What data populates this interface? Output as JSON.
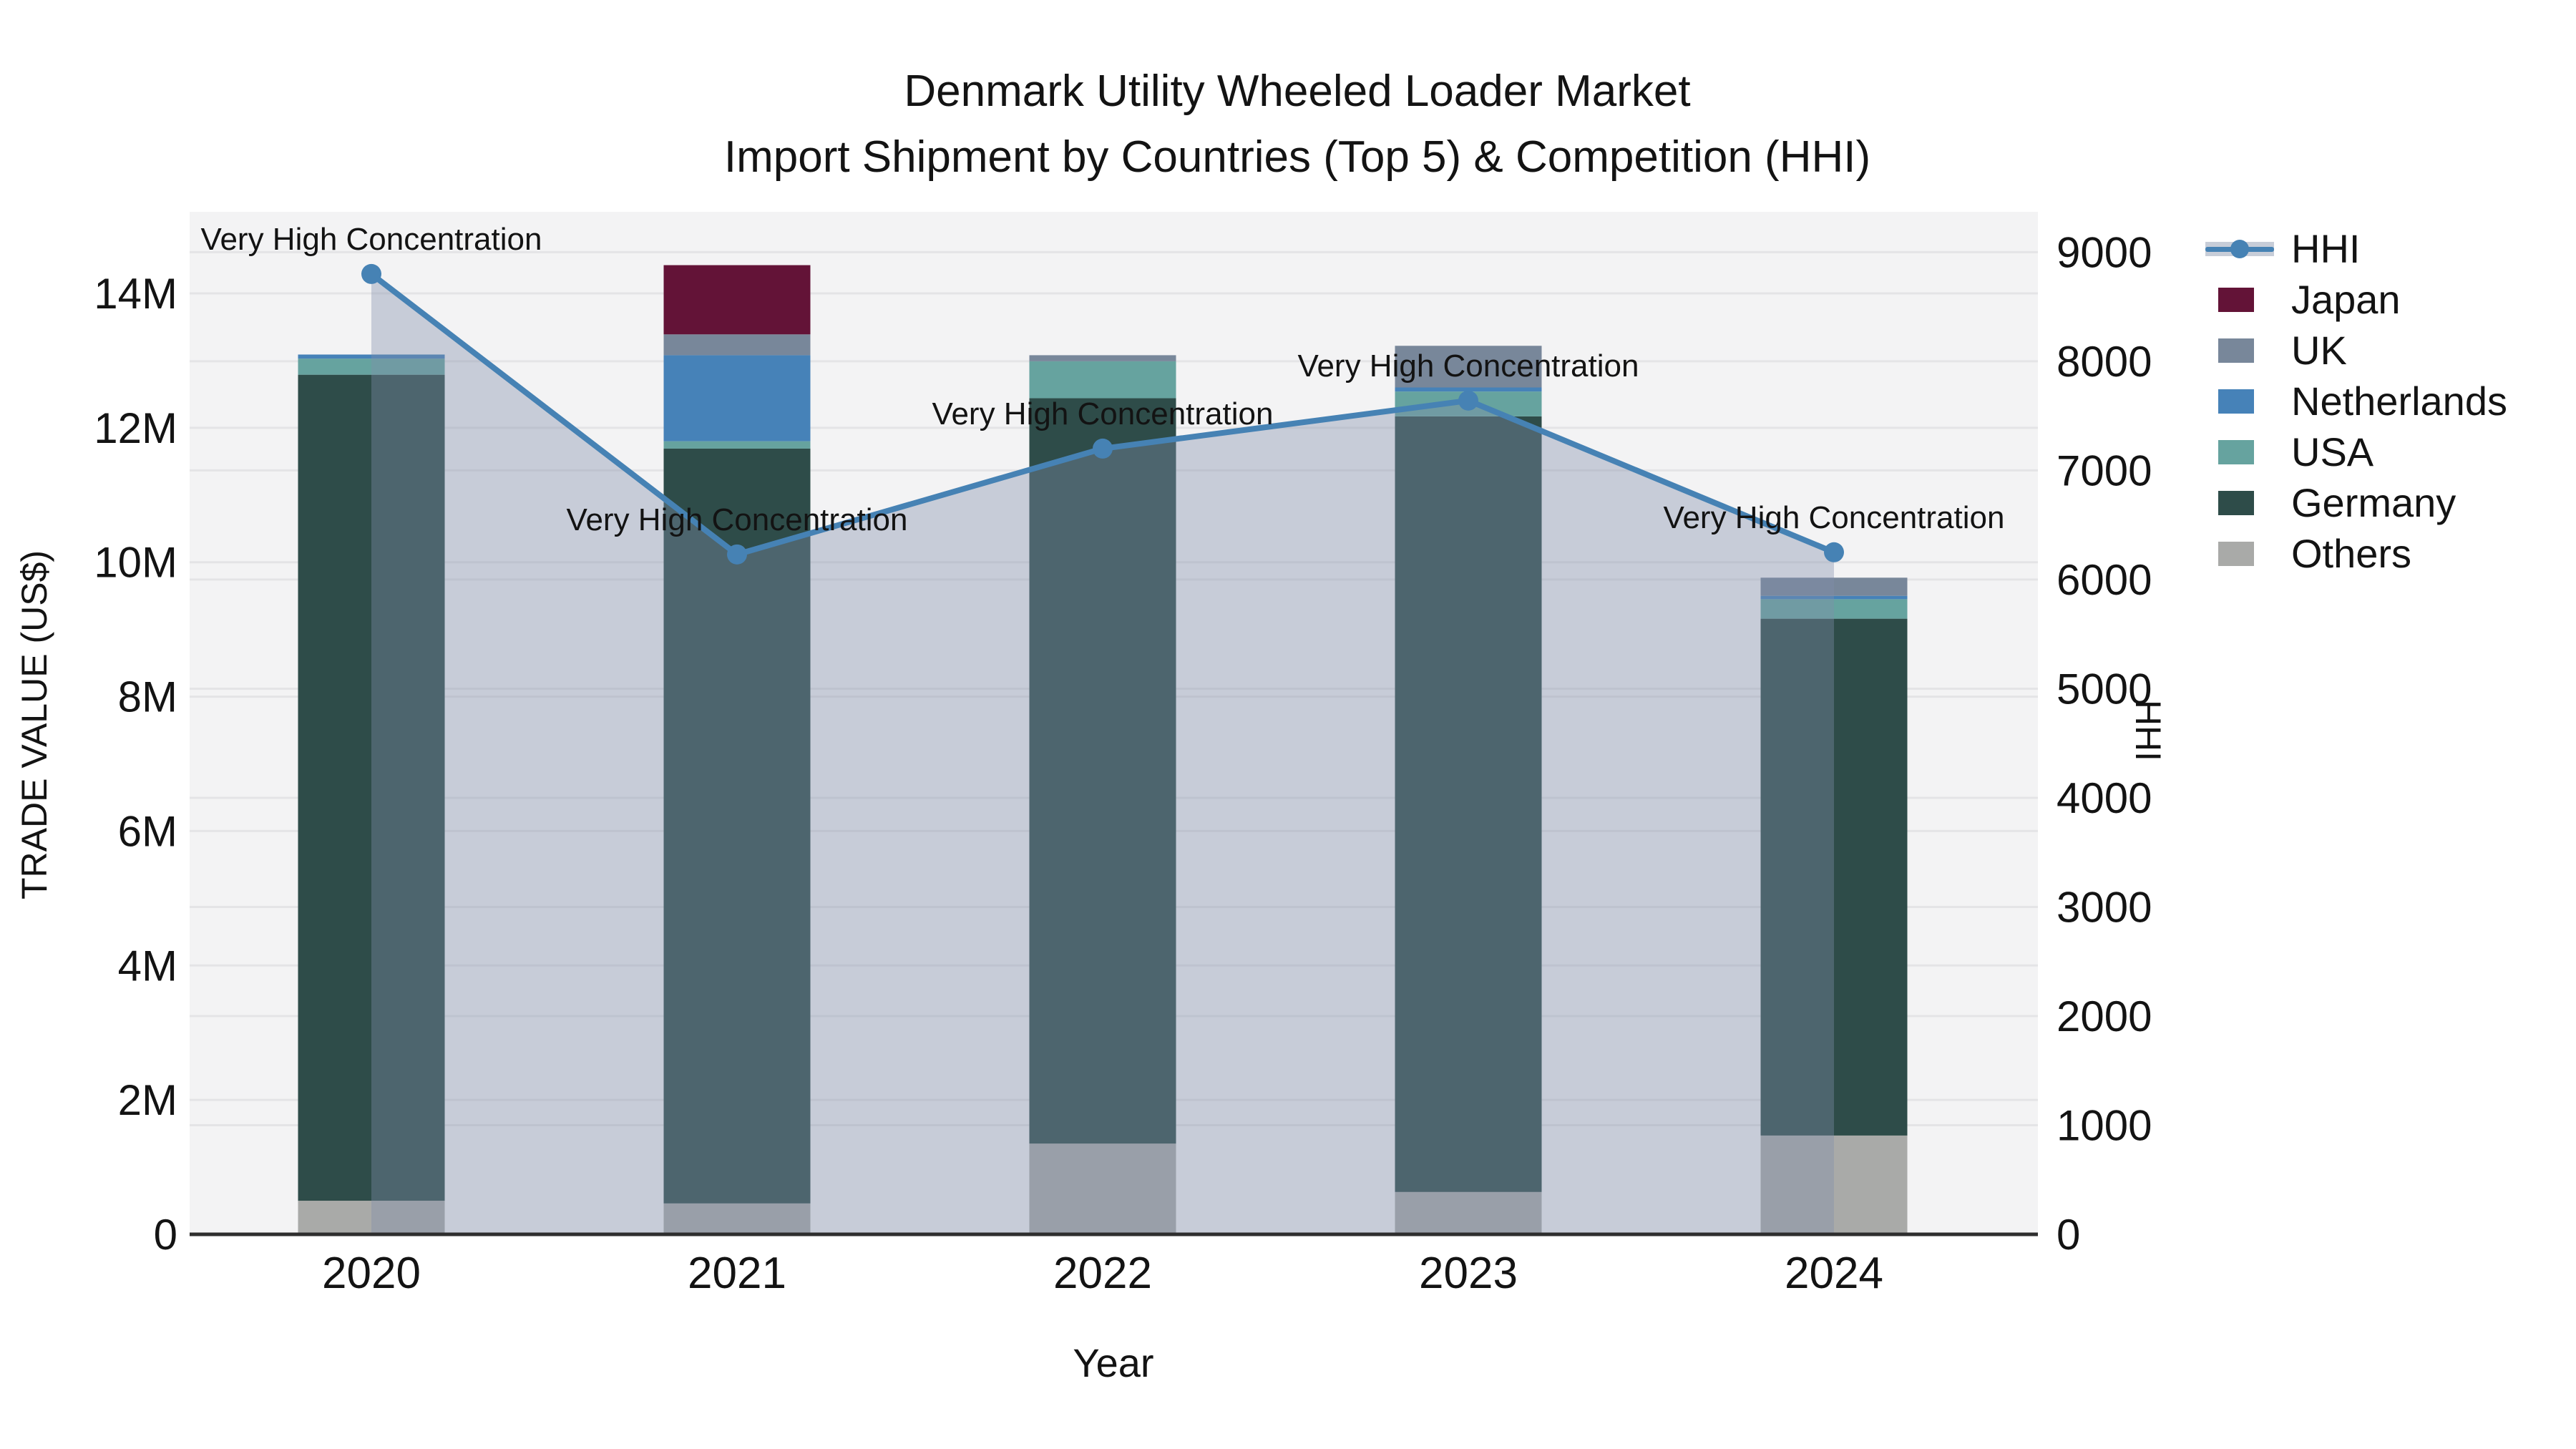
{
  "title": {
    "line1": "Denmark Utility Wheeled Loader Market",
    "line2": "Import Shipment by Countries (Top 5) & Competition (HHI)"
  },
  "axes": {
    "x_label": "Year",
    "y_left_label": "TRADE VALUE (US$)",
    "y_right_label": "HHI",
    "y_left_ticks": [
      {
        "label": "0",
        "value": 0
      },
      {
        "label": "2M",
        "value": 2
      },
      {
        "label": "4M",
        "value": 4
      },
      {
        "label": "6M",
        "value": 6
      },
      {
        "label": "8M",
        "value": 8
      },
      {
        "label": "10M",
        "value": 10
      },
      {
        "label": "12M",
        "value": 12
      },
      {
        "label": "14M",
        "value": 14
      }
    ],
    "y_right_ticks": [
      {
        "label": "0",
        "value": 0
      },
      {
        "label": "1000",
        "value": 1000
      },
      {
        "label": "2000",
        "value": 2000
      },
      {
        "label": "3000",
        "value": 3000
      },
      {
        "label": "4000",
        "value": 4000
      },
      {
        "label": "5000",
        "value": 5000
      },
      {
        "label": "6000",
        "value": 6000
      },
      {
        "label": "7000",
        "value": 7000
      },
      {
        "label": "8000",
        "value": 8000
      },
      {
        "label": "9000",
        "value": 9000
      }
    ]
  },
  "legend": {
    "items": [
      {
        "label": "HHI",
        "type": "line",
        "color": "#4682B4"
      },
      {
        "label": "Japan",
        "type": "swatch",
        "color": "#631337"
      },
      {
        "label": "UK",
        "type": "swatch",
        "color": "#78879A"
      },
      {
        "label": "Netherlands",
        "type": "swatch",
        "color": "#4682B8"
      },
      {
        "label": "USA",
        "type": "swatch",
        "color": "#66A39F"
      },
      {
        "label": "Germany",
        "type": "swatch",
        "color": "#2E4C49"
      },
      {
        "label": "Others",
        "type": "swatch",
        "color": "#A9AAA8"
      }
    ]
  },
  "chart_data": {
    "type": "bar+line",
    "title": "Denmark Utility Wheeled Loader Market — Import Shipment by Countries (Top 5) & Competition (HHI)",
    "categories": [
      "2020",
      "2021",
      "2022",
      "2023",
      "2024"
    ],
    "bar_unit": "million US$",
    "stack_order_bottom_to_top": [
      "Others",
      "Germany",
      "USA",
      "Netherlands",
      "UK",
      "Japan"
    ],
    "series": [
      {
        "name": "Others",
        "color": "#A9AAA8",
        "values": [
          0.5,
          0.46,
          1.35,
          0.63,
          1.47
        ]
      },
      {
        "name": "Germany",
        "color": "#2E4C49",
        "values": [
          12.29,
          11.23,
          11.09,
          11.54,
          7.69
        ]
      },
      {
        "name": "USA",
        "color": "#66A39F",
        "values": [
          0.24,
          0.11,
          0.55,
          0.37,
          0.29
        ]
      },
      {
        "name": "Netherlands",
        "color": "#4682B8",
        "values": [
          0.06,
          1.28,
          0.0,
          0.06,
          0.05
        ]
      },
      {
        "name": "UK",
        "color": "#78879A",
        "values": [
          0.0,
          0.31,
          0.09,
          0.62,
          0.27
        ]
      },
      {
        "name": "Japan",
        "color": "#631337",
        "values": [
          0.0,
          1.03,
          0.0,
          0.0,
          0.0
        ]
      }
    ],
    "bar_totals": [
      13.09,
      14.42,
      13.08,
      13.22,
      9.77
    ],
    "line_series": {
      "name": "HHI",
      "axis": "right",
      "color": "#4682B4",
      "area_fill": "rgba(128,143,172,0.38)",
      "values": [
        8800,
        6230,
        7200,
        7640,
        6250
      ]
    },
    "annotations": [
      {
        "text": "Very High Concentration",
        "category": "2020"
      },
      {
        "text": "Very High Concentration",
        "category": "2021"
      },
      {
        "text": "Very High Concentration",
        "category": "2022"
      },
      {
        "text": "Very High Concentration",
        "category": "2023"
      },
      {
        "text": "Very High Concentration",
        "category": "2024"
      }
    ],
    "ylim_left_millions": [
      0,
      15.2
    ],
    "ylim_right": [
      0,
      9370
    ],
    "grid": true,
    "legend_position": "top-right",
    "plot_bg": "#F3F3F4",
    "grid_color": "#E4E4E6",
    "spine_color": "#2E2E2E"
  }
}
